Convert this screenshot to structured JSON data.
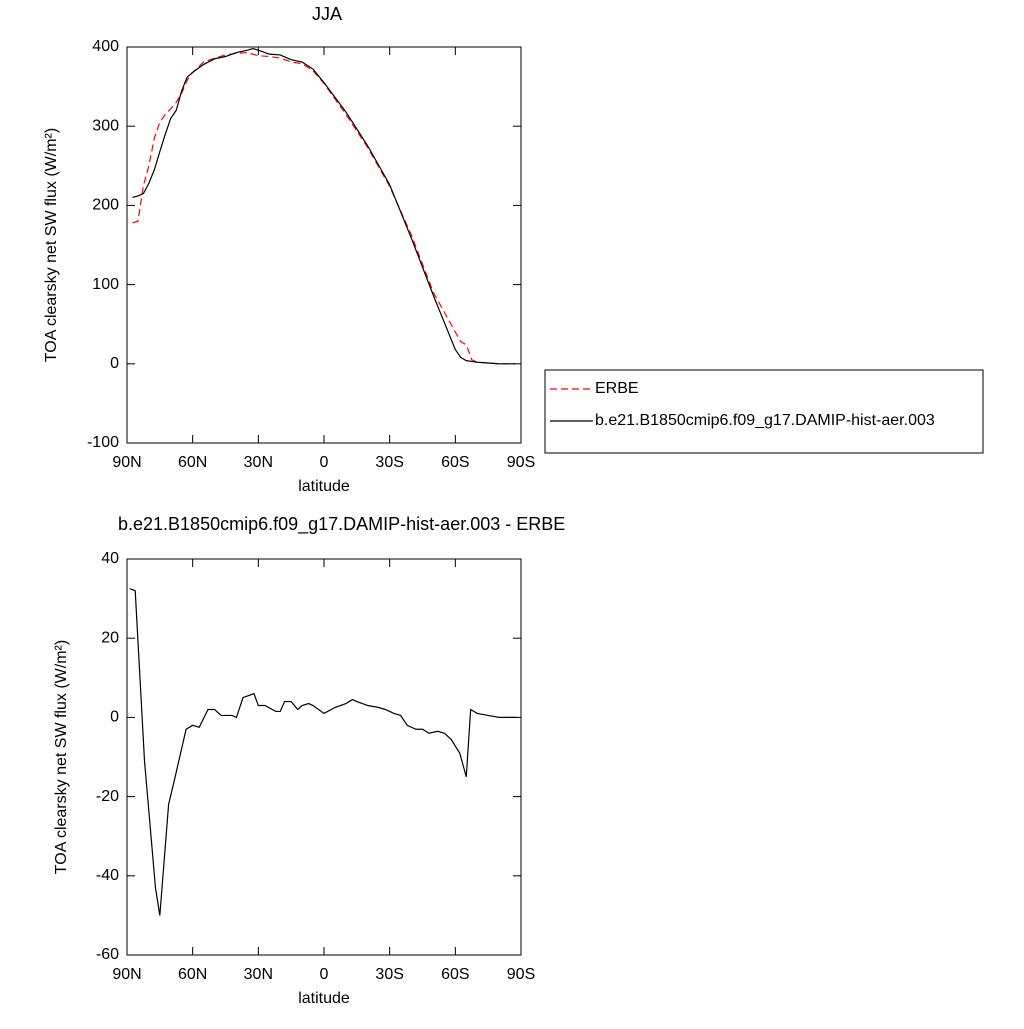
{
  "chart_data": [
    {
      "type": "line",
      "title": "JJA",
      "x_label": "latitude",
      "y_label": "TOA clearsky net SW flux (W/m²)",
      "xlim": [
        90,
        -90
      ],
      "ylim": [
        -100,
        400
      ],
      "xticks": [
        {
          "value": 90,
          "label": "90N"
        },
        {
          "value": 60,
          "label": "60N"
        },
        {
          "value": 30,
          "label": "30N"
        },
        0,
        {
          "value": -30,
          "label": "30S"
        },
        {
          "value": -60,
          "label": "60S"
        },
        {
          "value": -90,
          "label": "90S"
        }
      ],
      "yticks": [
        -100,
        0,
        100,
        200,
        300,
        400
      ],
      "legend": "right",
      "x": [
        87.5,
        85,
        82.5,
        80,
        77.5,
        75,
        72.5,
        70,
        67.5,
        65,
        62.5,
        60,
        55,
        50,
        45,
        40,
        35,
        32.5,
        30,
        25,
        20,
        15,
        10,
        5,
        0,
        -10,
        -20,
        -30,
        -40,
        -50,
        -60,
        -62.5,
        -65,
        -67.5,
        -70,
        -75,
        -80,
        -87.5
      ],
      "series": [
        {
          "name": "ERBE",
          "color": "#ff0000",
          "dashed": true,
          "values": [
            178,
            180,
            225,
            250,
            285,
            305,
            315,
            322,
            330,
            342,
            358,
            368,
            381,
            386,
            390,
            392,
            393,
            391,
            389,
            388,
            386,
            381,
            379,
            370,
            354,
            315,
            273,
            224,
            162,
            90,
            40,
            28,
            24,
            5,
            2,
            1,
            0,
            0
          ]
        },
        {
          "name": "b.e21.B1850cmip6.f09_g17.DAMIP-hist-aer.003",
          "color": "#000000",
          "dashed": false,
          "values": [
            210,
            212,
            215,
            228,
            245,
            268,
            290,
            310,
            320,
            345,
            362,
            368,
            378,
            385,
            388,
            393,
            396,
            398,
            396,
            391,
            390,
            384,
            381,
            372,
            355,
            318,
            275,
            226,
            158,
            86,
            18,
            8,
            4,
            3,
            2,
            1,
            0,
            0
          ]
        }
      ]
    },
    {
      "type": "line",
      "title": "b.e21.B1850cmip6.f09_g17.DAMIP-hist-aer.003 - ERBE",
      "x_label": "latitude",
      "y_label": "TOA clearsky net SW flux (W/m²)",
      "xlim": [
        90,
        -90
      ],
      "ylim": [
        -60,
        40
      ],
      "xticks": [
        {
          "value": 90,
          "label": "90N"
        },
        {
          "value": 60,
          "label": "60N"
        },
        {
          "value": 30,
          "label": "30N"
        },
        0,
        {
          "value": -30,
          "label": "30S"
        },
        {
          "value": -60,
          "label": "60S"
        },
        {
          "value": -90,
          "label": "90S"
        }
      ],
      "yticks": [
        -60,
        -40,
        -20,
        0,
        20,
        40
      ],
      "x": [
        88.75,
        86.25,
        82,
        77,
        75,
        71,
        68,
        63,
        60,
        57,
        53,
        50,
        47,
        42,
        40,
        37,
        32,
        30,
        27,
        22,
        20,
        18,
        15,
        12,
        10,
        7,
        5,
        0,
        -5,
        -10,
        -13,
        -15,
        -20,
        -25,
        -28,
        -32,
        -35,
        -38,
        -42,
        -45,
        -48,
        -52,
        -55,
        -58,
        -62,
        -65,
        -67,
        -70,
        -75,
        -80,
        -85,
        -88
      ],
      "series": [
        {
          "color": "#000000",
          "dashed": false,
          "values": [
            32.5,
            32,
            -11,
            -43,
            -50,
            -22,
            -15,
            -3,
            -2,
            -2.5,
            2,
            2,
            0.5,
            0.5,
            0,
            5,
            6,
            3,
            3,
            1.5,
            1.5,
            4,
            4,
            2,
            3,
            3.5,
            3,
            1,
            2.5,
            3.5,
            4.5,
            4,
            3,
            2.5,
            2,
            1,
            0.5,
            -2,
            -3,
            -3,
            -4,
            -3.5,
            -4,
            -5.5,
            -9,
            -15,
            2,
            1,
            0.5,
            0,
            0,
            0
          ]
        }
      ]
    }
  ]
}
